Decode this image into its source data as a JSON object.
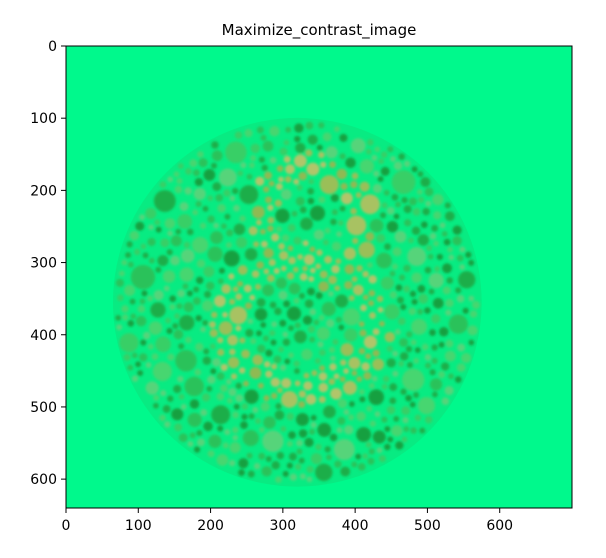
{
  "chart_data": {
    "type": "image",
    "title": "Maximize_contrast_image",
    "xlabel": "",
    "ylabel": "",
    "image_width": 700,
    "image_height": 640,
    "xlim": [
      0,
      700
    ],
    "ylim": [
      640,
      0
    ],
    "x_ticks": [
      0,
      100,
      200,
      300,
      400,
      500,
      600
    ],
    "y_ticks": [
      0,
      100,
      200,
      300,
      400,
      500,
      600
    ],
    "grid": false,
    "legend": "none",
    "content": {
      "background_color": "#00F98C",
      "plate_center": [
        320,
        355
      ],
      "plate_radius": 255,
      "plate_dot_colors": [
        "#2CC25A",
        "#1FAE48",
        "#38CF66",
        "#19A040",
        "#47D670",
        "#56D47A"
      ],
      "figure_dot_colors": [
        "#9ABF58",
        "#A8C262",
        "#8FBA52",
        "#B1C56A"
      ],
      "hidden_figure": "8"
    }
  }
}
